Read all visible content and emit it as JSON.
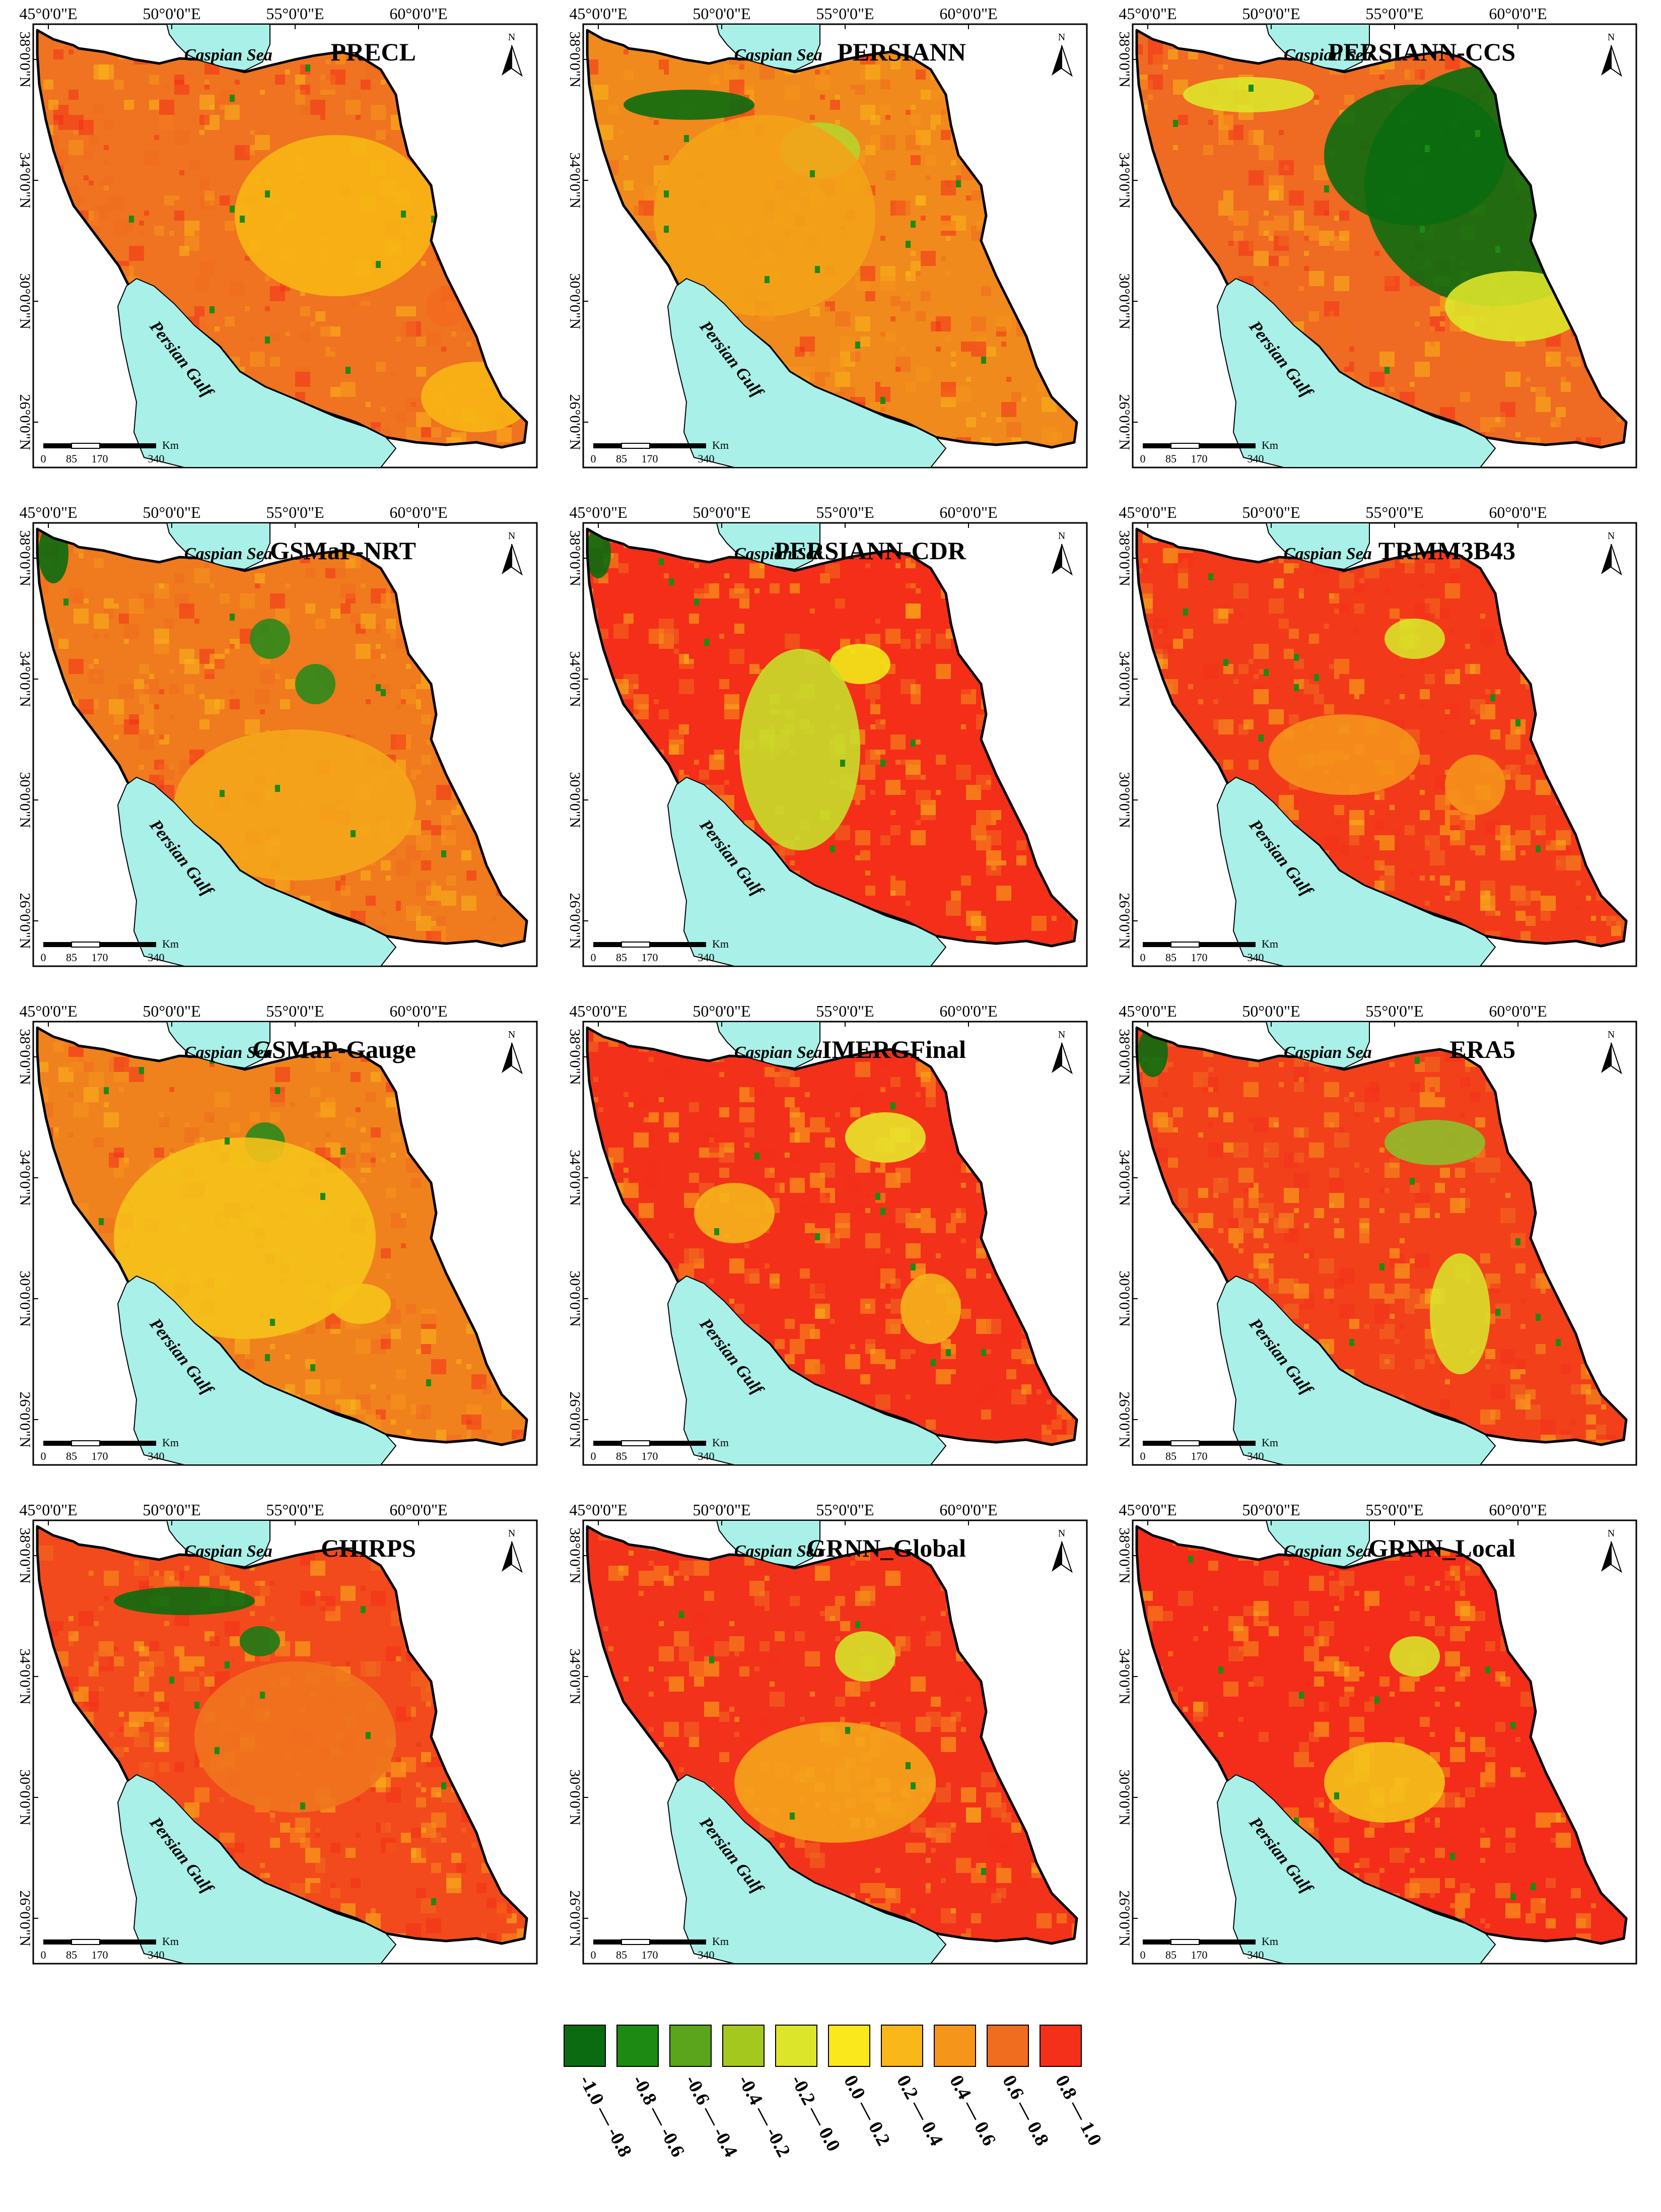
{
  "figure": {
    "panels": [
      {
        "title": "PRECL",
        "base": "#ef7320",
        "lake": "#f26a1e",
        "desert": "#f7b614",
        "pattern": "precl"
      },
      {
        "title": "PERSIANN",
        "base": "#f08a1c",
        "lake": "#b9d22a",
        "desert": "#f3a218",
        "pattern": "persiann"
      },
      {
        "title": "PERSIANN-CCS",
        "base": "#ef6a22",
        "lake": "#0b6b10",
        "desert": "#0b6b10",
        "pattern": "ccs"
      },
      {
        "title": "GSMaP-NRT",
        "base": "#f07a1e",
        "lake": "#2b8a1b",
        "desert": "#f5a61b",
        "pattern": "nrt"
      },
      {
        "title": "PERSIANN-CDR",
        "base": "#f42e18",
        "lake": "#f2ea1a",
        "desert": "#c8de2a",
        "pattern": "cdr"
      },
      {
        "title": "TRMM3B43",
        "base": "#f23a1a",
        "lake": "#d9e228",
        "desert": "#f5941b",
        "pattern": "trmm"
      },
      {
        "title": "GSMaP-Gauge",
        "base": "#f0821e",
        "lake": "#2b8a1b",
        "desert": "#f5c21a",
        "pattern": "gauge"
      },
      {
        "title": "IMERGFinal",
        "base": "#f3301a",
        "lake": "#e9e52a",
        "desert": "#f5b41b",
        "pattern": "imerg"
      },
      {
        "title": "ERA5",
        "base": "#f2401b",
        "lake": "#8fbd2a",
        "desert": "#d9e02a",
        "pattern": "era5"
      },
      {
        "title": "CHIRPS",
        "base": "#f24a1c",
        "lake": "#1c7a16",
        "desert": "#f0741e",
        "pattern": "chirps"
      },
      {
        "title": "GRNN_Global",
        "base": "#f3321b",
        "lake": "#d7e22a",
        "desert": "#f5a41c",
        "pattern": "grnn_g"
      },
      {
        "title": "GRNN_Local",
        "base": "#f42c1a",
        "lake": "#d9e22a",
        "desert": "#f5c21b",
        "pattern": "grnn_l"
      }
    ],
    "top_ticks": [
      "45°0'0\"E",
      "50°0'0\"E",
      "55°0'0\"E",
      "60°0'0\"E"
    ],
    "left_ticks": [
      "38°0'0\"N",
      "34°0'0\"N",
      "30°0'0\"N",
      "26°0'0\"N"
    ],
    "caspian_label": "Caspian Sea",
    "gulf_label": "Persian Gulf",
    "north_label": "N",
    "scale_unit": "Km",
    "scale_labels": [
      "0",
      "85",
      "170",
      "340"
    ],
    "legend": {
      "classes": [
        {
          "label": "-1.0 — -0.8",
          "color": "#0b6b10"
        },
        {
          "label": "-0.8 — -0.6",
          "color": "#1d8a14"
        },
        {
          "label": "-0.6 — -0.4",
          "color": "#5aa51c"
        },
        {
          "label": "-0.4 — -0.2",
          "color": "#a5c81e"
        },
        {
          "label": "-0.2 — 0.0",
          "color": "#dde52a"
        },
        {
          "label": "0.0 — 0.2",
          "color": "#fbe81c"
        },
        {
          "label": "0.2 — 0.4",
          "color": "#f9b719"
        },
        {
          "label": "0.4 — 0.6",
          "color": "#f5961b"
        },
        {
          "label": "0.6 — 0.8",
          "color": "#f06c1f"
        },
        {
          "label": "0.8 — 1.0",
          "color": "#f42f1a"
        }
      ]
    }
  }
}
